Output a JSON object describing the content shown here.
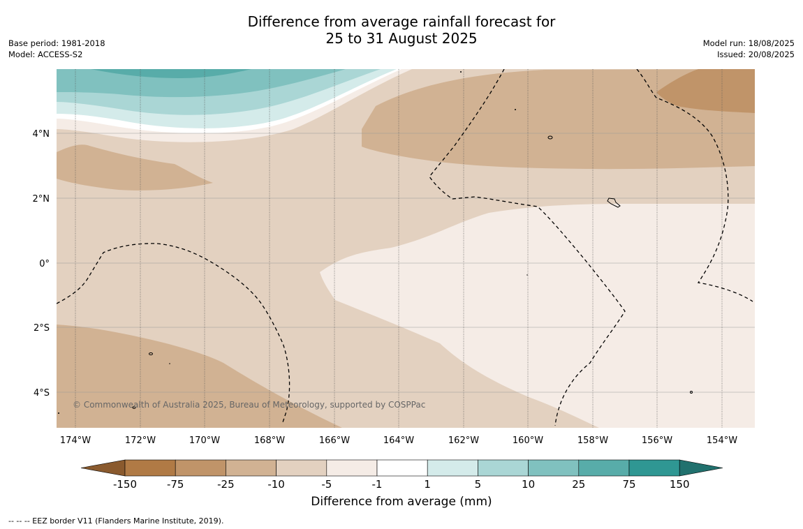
{
  "title_line1": "Difference from average rainfall forecast for",
  "title_line2": "25 to 31 August 2025",
  "base_period": "Base period: 1981-2018",
  "model": "Model: ACCESS-S2",
  "model_run": "Model run: 18/08/2025",
  "issued": "Issued: 20/08/2025",
  "copyright": "© Commonwealth of Australia 2025, Bureau of Meteorology, supported by COSPPac",
  "lat_labels": [
    "4°N",
    "2°N",
    "0°",
    "2°S",
    "4°S"
  ],
  "lon_labels": [
    "174°W",
    "172°W",
    "170°W",
    "168°W",
    "166°W",
    "164°W",
    "162°W",
    "160°W",
    "158°W",
    "156°W",
    "154°W"
  ],
  "colorbar": {
    "title": "Difference from average (mm)",
    "ticks": [
      "-150",
      "-75",
      "-25",
      "-10",
      "-5",
      "-1",
      "1",
      "5",
      "10",
      "25",
      "75",
      "150"
    ],
    "colors": [
      "#8a5a2e",
      "#b07a45",
      "#c09469",
      "#d1b293",
      "#e3d1c0",
      "#f5ece6",
      "#ffffff",
      "#d4ebea",
      "#aad6d5",
      "#80c1bf",
      "#58aca9",
      "#2f9793",
      "#21716e"
    ]
  },
  "footer_legend": "--  --  -- EEZ border V11 (Flanders Marine Institute, 2019)."
}
